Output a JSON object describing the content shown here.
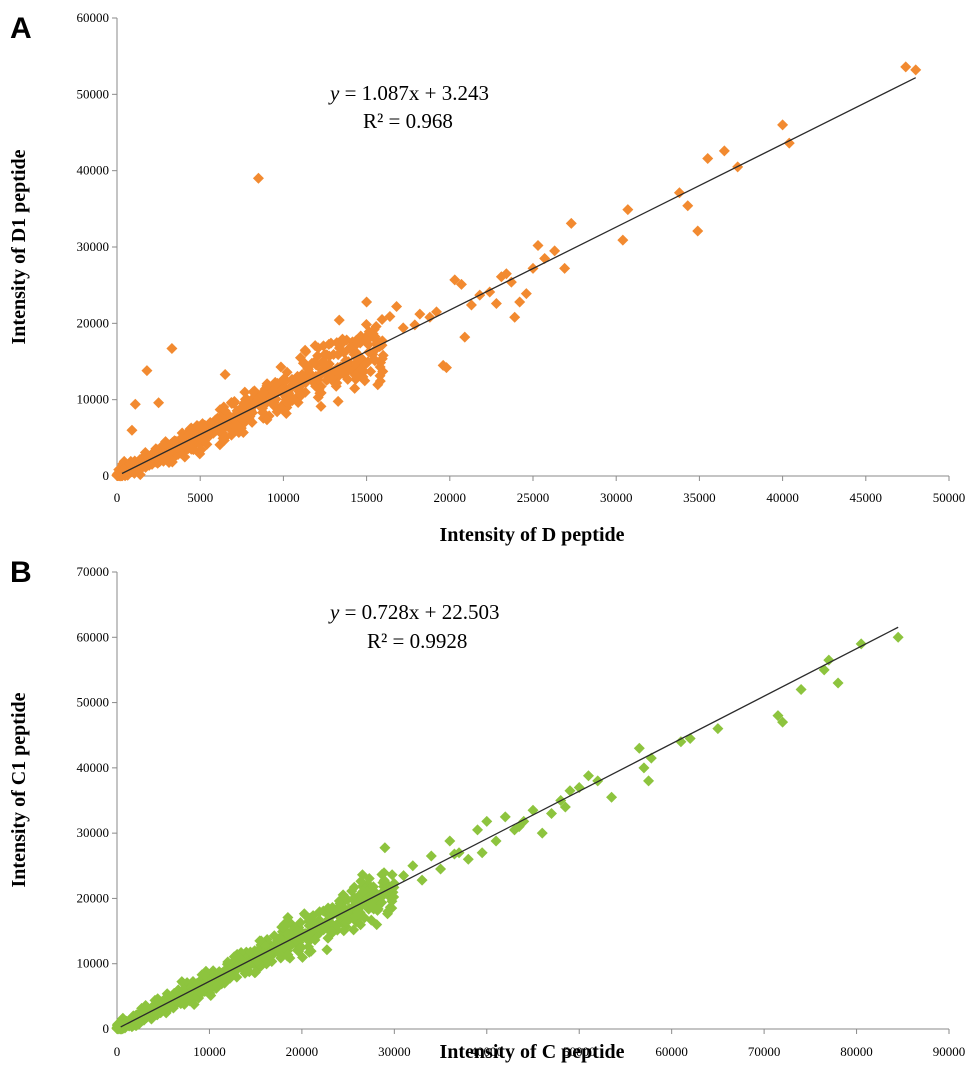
{
  "chart_data": [
    {
      "panel": "A",
      "type": "scatter",
      "xlabel": "Intensity of D peptide",
      "ylabel": "Intensity of D1 peptide",
      "xlim": [
        0,
        50000
      ],
      "ylim": [
        0,
        60000
      ],
      "xticks": [
        0,
        5000,
        10000,
        15000,
        20000,
        25000,
        30000,
        35000,
        40000,
        45000,
        50000
      ],
      "yticks": [
        0,
        10000,
        20000,
        30000,
        40000,
        50000,
        60000
      ],
      "marker_color": "#F28A30",
      "grid": false,
      "legend": "none",
      "annotation": {
        "equation_lhs": "y",
        "equation_rhs": " = 1.087x + 3.243",
        "r2_label": "R² = 0.968"
      },
      "trendline": {
        "slope": 1.087,
        "intercept": 3.243,
        "x_range": [
          300,
          48000
        ]
      },
      "cluster": {
        "n": 650,
        "x_range": [
          0,
          16000
        ],
        "slope": 1.09,
        "spread": 0.13,
        "seed": 11
      },
      "points": [
        [
          8500,
          39000
        ],
        [
          1800,
          13800
        ],
        [
          3300,
          16700
        ],
        [
          2500,
          9600
        ],
        [
          1100,
          9400
        ],
        [
          6500,
          13300
        ],
        [
          900,
          6000
        ],
        [
          15000,
          22800
        ],
        [
          16400,
          20900
        ],
        [
          16800,
          22200
        ],
        [
          17200,
          19400
        ],
        [
          17900,
          19800
        ],
        [
          18200,
          21200
        ],
        [
          18800,
          20800
        ],
        [
          19200,
          21500
        ],
        [
          19600,
          14500
        ],
        [
          19800,
          14200
        ],
        [
          20300,
          25700
        ],
        [
          20700,
          25100
        ],
        [
          20900,
          18200
        ],
        [
          21300,
          22400
        ],
        [
          21800,
          23700
        ],
        [
          22400,
          24100
        ],
        [
          22800,
          22600
        ],
        [
          23100,
          26100
        ],
        [
          23400,
          26500
        ],
        [
          23700,
          25400
        ],
        [
          23900,
          20800
        ],
        [
          24200,
          22800
        ],
        [
          24600,
          23900
        ],
        [
          25000,
          27200
        ],
        [
          25300,
          30200
        ],
        [
          25700,
          28500
        ],
        [
          26300,
          29500
        ],
        [
          26900,
          27200
        ],
        [
          27300,
          33100
        ],
        [
          30400,
          30900
        ],
        [
          30700,
          34900
        ],
        [
          33800,
          37100
        ],
        [
          34300,
          35400
        ],
        [
          34900,
          32100
        ],
        [
          35500,
          41600
        ],
        [
          36500,
          42600
        ],
        [
          37300,
          40500
        ],
        [
          40000,
          46000
        ],
        [
          40400,
          43600
        ],
        [
          47400,
          53600
        ],
        [
          48000,
          53200
        ]
      ]
    },
    {
      "panel": "B",
      "type": "scatter",
      "xlabel": "Intensity of C peptide",
      "ylabel": "Intensity of C1 peptide",
      "xlim": [
        0,
        90000
      ],
      "ylim": [
        0,
        70000
      ],
      "xticks": [
        0,
        10000,
        20000,
        30000,
        40000,
        50000,
        60000,
        70000,
        80000,
        90000
      ],
      "yticks": [
        0,
        10000,
        20000,
        30000,
        40000,
        50000,
        60000,
        70000
      ],
      "marker_color": "#8DC43E",
      "grid": false,
      "legend": "none",
      "annotation": {
        "equation_lhs": "y",
        "equation_rhs": " = 0.728x + 22.503",
        "r2_label": "R² = 0.9928"
      },
      "trendline": {
        "slope": 0.728,
        "intercept": 22.503,
        "x_range": [
          400,
          84500
        ]
      },
      "cluster": {
        "n": 700,
        "x_range": [
          0,
          30000
        ],
        "slope": 0.725,
        "spread": 0.05,
        "seed": 7
      },
      "points": [
        [
          31000,
          23500
        ],
        [
          32000,
          25000
        ],
        [
          33000,
          22800
        ],
        [
          34000,
          26500
        ],
        [
          35000,
          24500
        ],
        [
          36000,
          28800
        ],
        [
          37000,
          27000
        ],
        [
          38000,
          26000
        ],
        [
          39000,
          30500
        ],
        [
          40000,
          31800
        ],
        [
          41000,
          28800
        ],
        [
          42000,
          32500
        ],
        [
          43000,
          30500
        ],
        [
          44000,
          31800
        ],
        [
          45000,
          33500
        ],
        [
          46000,
          30000
        ],
        [
          47000,
          33000
        ],
        [
          48000,
          35000
        ],
        [
          49000,
          36500
        ],
        [
          50000,
          37000
        ],
        [
          51000,
          38800
        ],
        [
          52000,
          38000
        ],
        [
          56500,
          43000
        ],
        [
          57000,
          40000
        ],
        [
          57500,
          38000
        ],
        [
          57800,
          41500
        ],
        [
          61000,
          44000
        ],
        [
          62000,
          44500
        ],
        [
          65000,
          46000
        ],
        [
          71500,
          48000
        ],
        [
          72000,
          47000
        ],
        [
          74000,
          52000
        ],
        [
          76500,
          55000
        ],
        [
          77000,
          56500
        ],
        [
          78000,
          53000
        ],
        [
          80500,
          59000
        ],
        [
          84500,
          60000
        ],
        [
          43500,
          31000
        ],
        [
          39500,
          27000
        ],
        [
          36500,
          26800
        ],
        [
          48500,
          34000
        ],
        [
          53500,
          35500
        ]
      ]
    }
  ]
}
